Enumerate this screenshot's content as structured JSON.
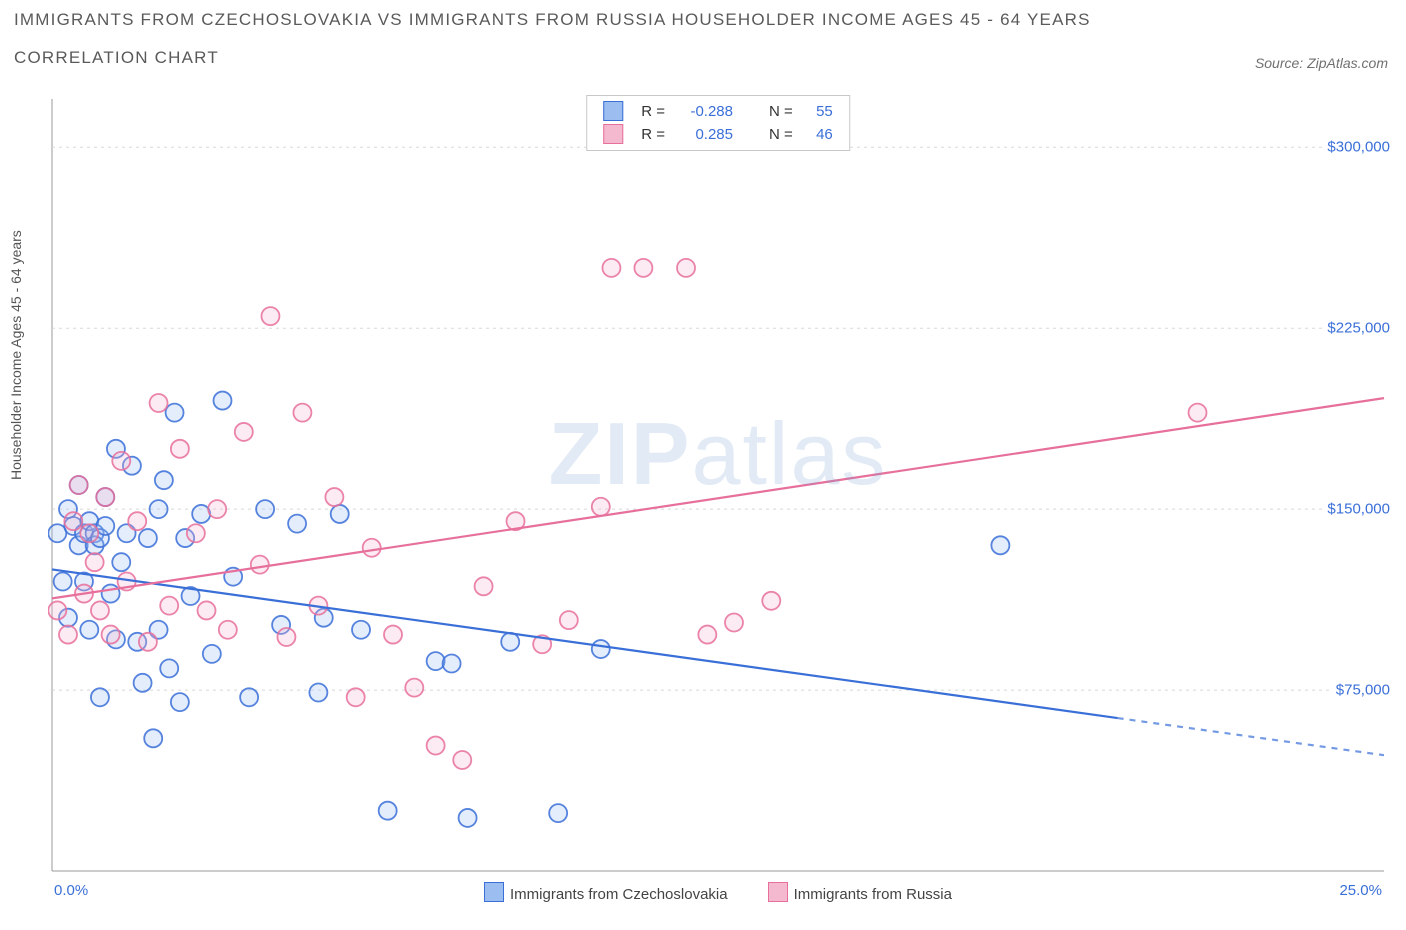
{
  "title_line1": "IMMIGRANTS FROM CZECHOSLOVAKIA VS IMMIGRANTS FROM RUSSIA HOUSEHOLDER INCOME AGES 45 - 64 YEARS",
  "title_line2": "CORRELATION CHART",
  "source_label": "Source: ZipAtlas.com",
  "y_axis_label": "Householder Income Ages 45 - 64 years",
  "watermark_bold": "ZIP",
  "watermark_rest": "atlas",
  "chart": {
    "type": "scatter_with_trend",
    "background_color": "#ffffff",
    "border_color": "#999999",
    "grid_color": "#d8d8d8",
    "grid_dash": "3,4",
    "xlim": [
      0,
      25
    ],
    "ylim": [
      0,
      320000
    ],
    "x_ticks": [
      {
        "v": 0,
        "label": "0.0%"
      },
      {
        "v": 25,
        "label": "25.0%"
      }
    ],
    "y_ticks": [
      {
        "v": 75000,
        "label": "$75,000"
      },
      {
        "v": 150000,
        "label": "$150,000"
      },
      {
        "v": 225000,
        "label": "$225,000"
      },
      {
        "v": 300000,
        "label": "$300,000"
      }
    ],
    "y_tick_color": "#3a6fd8",
    "x_tick_color": "#3a6fd8",
    "marker_radius": 9,
    "marker_stroke_width": 1.8,
    "marker_fill_opacity": 0.28,
    "line_width": 2.2,
    "series": [
      {
        "key": "cz",
        "label": "Immigrants from Czechoslovakia",
        "stroke": "#3a6fd8",
        "fill": "#9cbdf0",
        "r_label": "R =",
        "r_value": "-0.288",
        "n_label": "N =",
        "n_value": "55",
        "trend": {
          "x1": 0,
          "y1": 125000,
          "x2": 25,
          "y2": 48000,
          "solid_until_x": 20
        },
        "points": [
          [
            0.1,
            140000
          ],
          [
            0.2,
            120000
          ],
          [
            0.3,
            150000
          ],
          [
            0.3,
            105000
          ],
          [
            0.4,
            143000
          ],
          [
            0.5,
            135000
          ],
          [
            0.5,
            160000
          ],
          [
            0.6,
            140000
          ],
          [
            0.6,
            120000
          ],
          [
            0.7,
            145000
          ],
          [
            0.7,
            100000
          ],
          [
            0.8,
            140000
          ],
          [
            0.8,
            135000
          ],
          [
            0.9,
            138000
          ],
          [
            0.9,
            72000
          ],
          [
            1.0,
            155000
          ],
          [
            1.0,
            143000
          ],
          [
            1.1,
            115000
          ],
          [
            1.2,
            96000
          ],
          [
            1.2,
            175000
          ],
          [
            1.3,
            128000
          ],
          [
            1.4,
            140000
          ],
          [
            1.5,
            168000
          ],
          [
            1.6,
            95000
          ],
          [
            1.7,
            78000
          ],
          [
            1.8,
            138000
          ],
          [
            1.9,
            55000
          ],
          [
            2.0,
            150000
          ],
          [
            2.0,
            100000
          ],
          [
            2.1,
            162000
          ],
          [
            2.2,
            84000
          ],
          [
            2.3,
            190000
          ],
          [
            2.4,
            70000
          ],
          [
            2.5,
            138000
          ],
          [
            2.6,
            114000
          ],
          [
            2.8,
            148000
          ],
          [
            3.0,
            90000
          ],
          [
            3.2,
            195000
          ],
          [
            3.4,
            122000
          ],
          [
            3.7,
            72000
          ],
          [
            4.0,
            150000
          ],
          [
            4.3,
            102000
          ],
          [
            4.6,
            144000
          ],
          [
            5.0,
            74000
          ],
          [
            5.1,
            105000
          ],
          [
            5.4,
            148000
          ],
          [
            5.8,
            100000
          ],
          [
            6.3,
            25000
          ],
          [
            7.2,
            87000
          ],
          [
            7.5,
            86000
          ],
          [
            7.8,
            22000
          ],
          [
            8.6,
            95000
          ],
          [
            9.5,
            24000
          ],
          [
            10.3,
            92000
          ],
          [
            17.8,
            135000
          ]
        ]
      },
      {
        "key": "ru",
        "label": "Immigrants from Russia",
        "stroke": "#e76f9b",
        "fill": "#f4b8cf",
        "r_label": "R =",
        "r_value": "0.285",
        "n_label": "N =",
        "n_value": "46",
        "trend": {
          "x1": 0,
          "y1": 113000,
          "x2": 25,
          "y2": 196000
        },
        "points": [
          [
            0.1,
            108000
          ],
          [
            0.3,
            98000
          ],
          [
            0.4,
            145000
          ],
          [
            0.5,
            160000
          ],
          [
            0.6,
            115000
          ],
          [
            0.7,
            140000
          ],
          [
            0.8,
            128000
          ],
          [
            0.9,
            108000
          ],
          [
            1.0,
            155000
          ],
          [
            1.1,
            98000
          ],
          [
            1.3,
            170000
          ],
          [
            1.4,
            120000
          ],
          [
            1.6,
            145000
          ],
          [
            1.8,
            95000
          ],
          [
            2.0,
            194000
          ],
          [
            2.2,
            110000
          ],
          [
            2.4,
            175000
          ],
          [
            2.7,
            140000
          ],
          [
            2.9,
            108000
          ],
          [
            3.1,
            150000
          ],
          [
            3.3,
            100000
          ],
          [
            3.6,
            182000
          ],
          [
            3.9,
            127000
          ],
          [
            4.1,
            230000
          ],
          [
            4.4,
            97000
          ],
          [
            4.7,
            190000
          ],
          [
            5.0,
            110000
          ],
          [
            5.3,
            155000
          ],
          [
            5.7,
            72000
          ],
          [
            6.0,
            134000
          ],
          [
            6.4,
            98000
          ],
          [
            6.8,
            76000
          ],
          [
            7.2,
            52000
          ],
          [
            7.7,
            46000
          ],
          [
            8.1,
            118000
          ],
          [
            8.7,
            145000
          ],
          [
            9.2,
            94000
          ],
          [
            9.7,
            104000
          ],
          [
            10.3,
            151000
          ],
          [
            10.5,
            250000
          ],
          [
            11.1,
            250000
          ],
          [
            11.9,
            250000
          ],
          [
            12.3,
            98000
          ],
          [
            12.8,
            103000
          ],
          [
            13.5,
            112000
          ],
          [
            21.5,
            190000
          ]
        ]
      }
    ],
    "legend_top": {
      "border": "#c8c8c8",
      "text_color": "#333333",
      "value_color": "#3a6fd8"
    },
    "legend_bottom_text_color": "#444444"
  }
}
